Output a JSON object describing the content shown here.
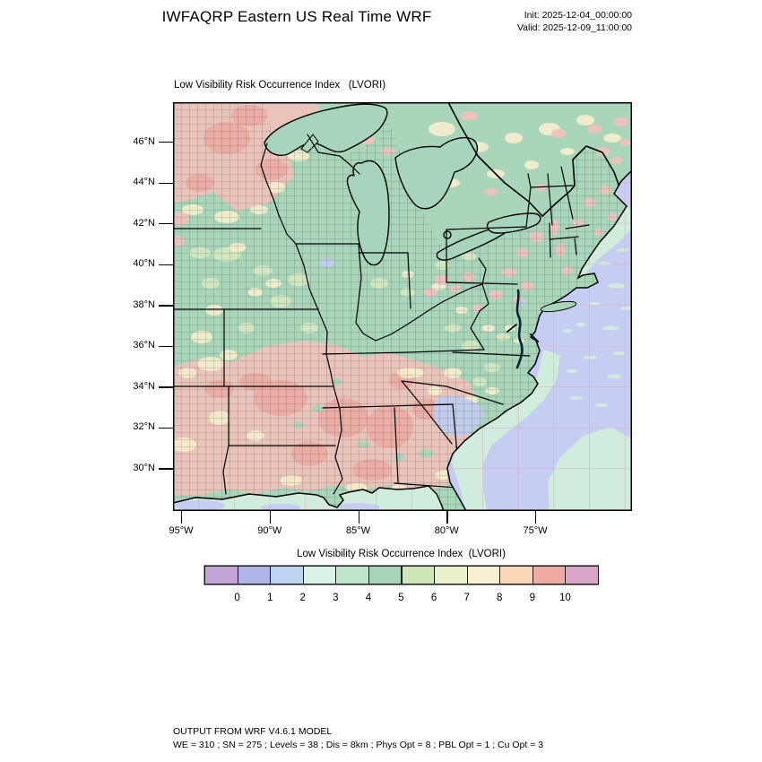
{
  "header": {
    "title": "IWFAQRP Eastern US Real Time WRF",
    "init": "Init: 2025-12-04_00:00:00",
    "valid": "Valid: 2025-12-09_11:00:00"
  },
  "map": {
    "title": "Low Visibility Risk Occurrence Index   (LVORI)",
    "lat_ticks": [
      "46°N",
      "44°N",
      "42°N",
      "40°N",
      "38°N",
      "36°N",
      "34°N",
      "32°N",
      "30°N"
    ],
    "lon_ticks": [
      "95°W",
      "90°W",
      "85°W",
      "80°W",
      "75°W"
    ],
    "palette": {
      "land_green": "#a9d5ba",
      "lake_green": "#a7d4bc",
      "ocean_lavender": "#c6cdf2",
      "coastal_green": "#cfecdc",
      "pink": "#f1c2bb",
      "salmon": "#eca9a1",
      "cream": "#f5eecd",
      "yellow_green": "#d9eac1",
      "blue_patch": "#c2cdee"
    }
  },
  "colorbar": {
    "title": "Low Visibility Risk Occurrence Index  (LVORI)",
    "tick_labels": [
      "0",
      "1",
      "2",
      "3",
      "4",
      "5",
      "6",
      "7",
      "8",
      "9",
      "10"
    ],
    "cell_colors": [
      "#c5a5d9",
      "#b1b4e9",
      "#bdd3f2",
      "#d9f3e7",
      "#bfe5cd",
      "#a5d4b6",
      "#cfe7b7",
      "#e9f2cd",
      "#f9f0d3",
      "#fad7b7",
      "#efaaa1",
      "#d9a6c8"
    ]
  },
  "footer": {
    "line1": "OUTPUT FROM WRF V4.6.1 MODEL",
    "line2": "WE = 310 ; SN = 275 ; Levels = 38 ; Dis = 8km ; Phys Opt = 8 ; PBL Opt = 1 ; Cu Opt = 3"
  }
}
